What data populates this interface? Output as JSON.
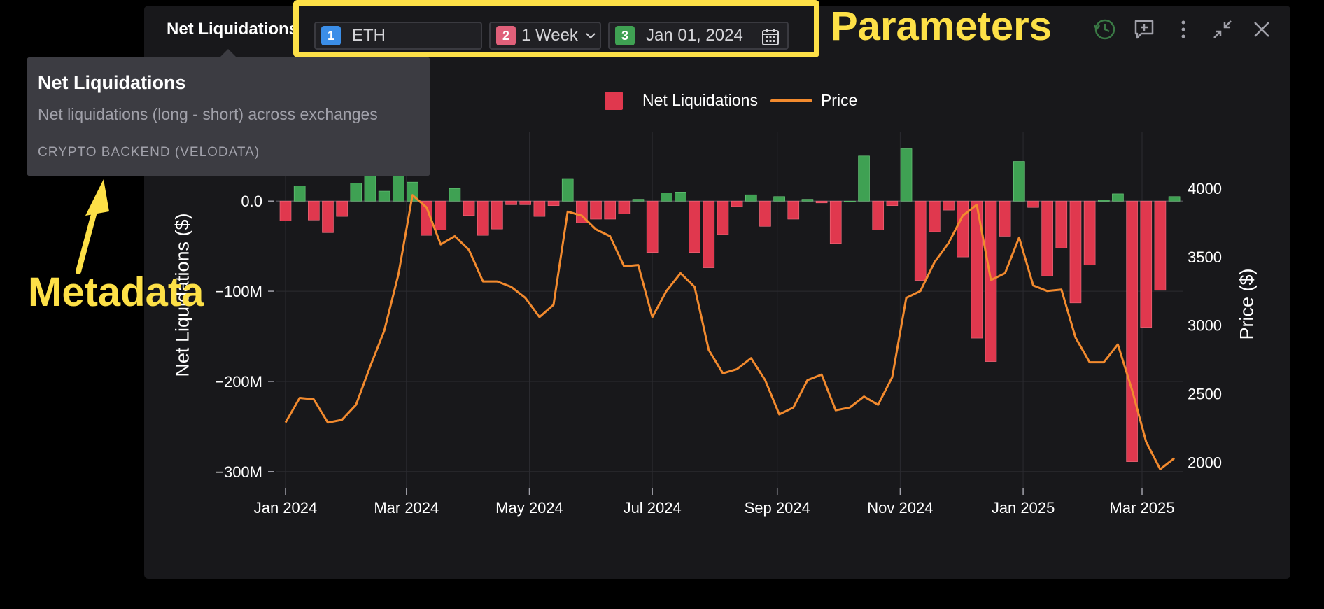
{
  "panel": {
    "title": "Net Liquidations",
    "parameters": [
      {
        "badge": "1",
        "value": "ETH",
        "badge_color": "#3b8ee8"
      },
      {
        "badge": "2",
        "value": "1 Week",
        "badge_color": "#e0607a"
      },
      {
        "badge": "3",
        "value": "Jan 01, 2024",
        "badge_color": "#3fa153"
      }
    ],
    "icons": [
      "history-icon",
      "comment-icon",
      "more-icon",
      "minimize-icon",
      "close-icon"
    ]
  },
  "annotations": {
    "parameters_label": "Parameters",
    "metadata_label": "Metadata",
    "color": "#fde047"
  },
  "tooltip": {
    "title": "Net Liquidations",
    "description": "Net liquidations (long - short) across exchanges",
    "source": "CRYPTO BACKEND (VELODATA)"
  },
  "chart_data": {
    "type": "bar",
    "legend": {
      "items": [
        "Net Liquidations",
        "Price"
      ],
      "placement": "top"
    },
    "y_title": "Net Liquidations ($)",
    "y2_title": "Price ($)",
    "y_ticks": [
      "0.0",
      "−100M",
      "−200M",
      "−300M"
    ],
    "y_tick_values": [
      0,
      -100,
      -200,
      -300
    ],
    "y2_ticks": [
      "4000",
      "3500",
      "3000",
      "2500",
      "2000"
    ],
    "y2_tick_values": [
      4000,
      3500,
      3000,
      2500,
      2000
    ],
    "x_ticks": [
      "Jan 2024",
      "Mar 2024",
      "May 2024",
      "Jul 2024",
      "Sep 2024",
      "Nov 2024",
      "Jan 2025",
      "Mar 2025"
    ],
    "x_tick_dates": [
      "2024-01-01",
      "2024-03-01",
      "2024-05-01",
      "2024-07-01",
      "2024-09-01",
      "2024-11-01",
      "2025-01-01",
      "2025-03-01"
    ],
    "ylim": [
      -318,
      77
    ],
    "y2lim": [
      1814,
      4413
    ],
    "positive_color": "#3fa153",
    "negative_color": "#e0384e",
    "price_color": "#f28a2e",
    "grid": true,
    "dates": [
      "2024-01-01",
      "2024-01-08",
      "2024-01-15",
      "2024-01-22",
      "2024-01-29",
      "2024-02-05",
      "2024-02-12",
      "2024-02-19",
      "2024-02-26",
      "2024-03-04",
      "2024-03-11",
      "2024-03-18",
      "2024-03-25",
      "2024-04-01",
      "2024-04-08",
      "2024-04-15",
      "2024-04-22",
      "2024-04-29",
      "2024-05-06",
      "2024-05-13",
      "2024-05-20",
      "2024-05-27",
      "2024-06-03",
      "2024-06-10",
      "2024-06-17",
      "2024-06-24",
      "2024-07-01",
      "2024-07-08",
      "2024-07-15",
      "2024-07-22",
      "2024-07-29",
      "2024-08-05",
      "2024-08-12",
      "2024-08-19",
      "2024-08-26",
      "2024-09-02",
      "2024-09-09",
      "2024-09-16",
      "2024-09-23",
      "2024-09-30",
      "2024-10-07",
      "2024-10-14",
      "2024-10-21",
      "2024-10-28",
      "2024-11-04",
      "2024-11-11",
      "2024-11-18",
      "2024-11-25",
      "2024-12-02",
      "2024-12-09",
      "2024-12-16",
      "2024-12-23",
      "2024-12-30",
      "2025-01-06",
      "2025-01-13",
      "2025-01-20",
      "2025-01-27",
      "2025-02-03",
      "2025-02-10",
      "2025-02-17",
      "2025-02-24",
      "2025-03-03",
      "2025-03-10",
      "2025-03-17"
    ],
    "net_liquidations": [
      -22,
      17,
      -21,
      -35,
      -17,
      20,
      28,
      11,
      38,
      21,
      -38,
      -32,
      14,
      -16,
      -38,
      -31,
      -4,
      -4,
      -17,
      -5,
      25,
      -24,
      -20,
      -20,
      -14,
      2,
      -57,
      9,
      10,
      -57,
      -74,
      -37,
      -6,
      7,
      -28,
      5,
      -20,
      2,
      -2,
      -47,
      0,
      50,
      -32,
      -5,
      58,
      -88,
      -34,
      -10,
      -62,
      -152,
      -178,
      -39,
      44,
      -7,
      -83,
      -52,
      -113,
      -71,
      1,
      8,
      -289,
      -140,
      -99,
      5
    ],
    "price": [
      2290,
      2470,
      2460,
      2290,
      2310,
      2420,
      2700,
      2960,
      3370,
      3950,
      3860,
      3590,
      3650,
      3550,
      3320,
      3320,
      3280,
      3200,
      3060,
      3150,
      3830,
      3800,
      3700,
      3650,
      3430,
      3440,
      3060,
      3250,
      3380,
      3280,
      2820,
      2650,
      2680,
      2760,
      2600,
      2350,
      2400,
      2600,
      2640,
      2380,
      2400,
      2480,
      2420,
      2620,
      3200,
      3250,
      3460,
      3600,
      3800,
      3880,
      3330,
      3380,
      3640,
      3290,
      3250,
      3260,
      2910,
      2730,
      2730,
      2860,
      2530,
      2150,
      1950,
      2030
    ]
  }
}
